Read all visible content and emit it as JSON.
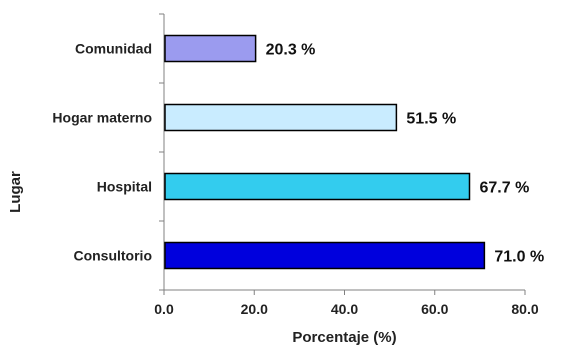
{
  "chart_data": {
    "type": "bar",
    "orientation": "horizontal",
    "categories": [
      "Comunidad",
      "Hogar materno",
      "Hospital",
      "Consultorio"
    ],
    "values": [
      20.3,
      51.5,
      67.7,
      71.0
    ],
    "data_labels": [
      "20.3 %",
      "51.5 %",
      "67.7 %",
      "71.0 %"
    ],
    "bar_colors": [
      "#9b9bef",
      "#c9ecff",
      "#33ccee",
      "#0000dd"
    ],
    "xlabel": "Porcentaje (%)",
    "ylabel": "Lugar",
    "xlim": [
      0,
      80
    ],
    "x_ticks": [
      "0.0",
      "20.0",
      "40.0",
      "60.0",
      "80.0"
    ],
    "grid": false,
    "legend": "none"
  }
}
